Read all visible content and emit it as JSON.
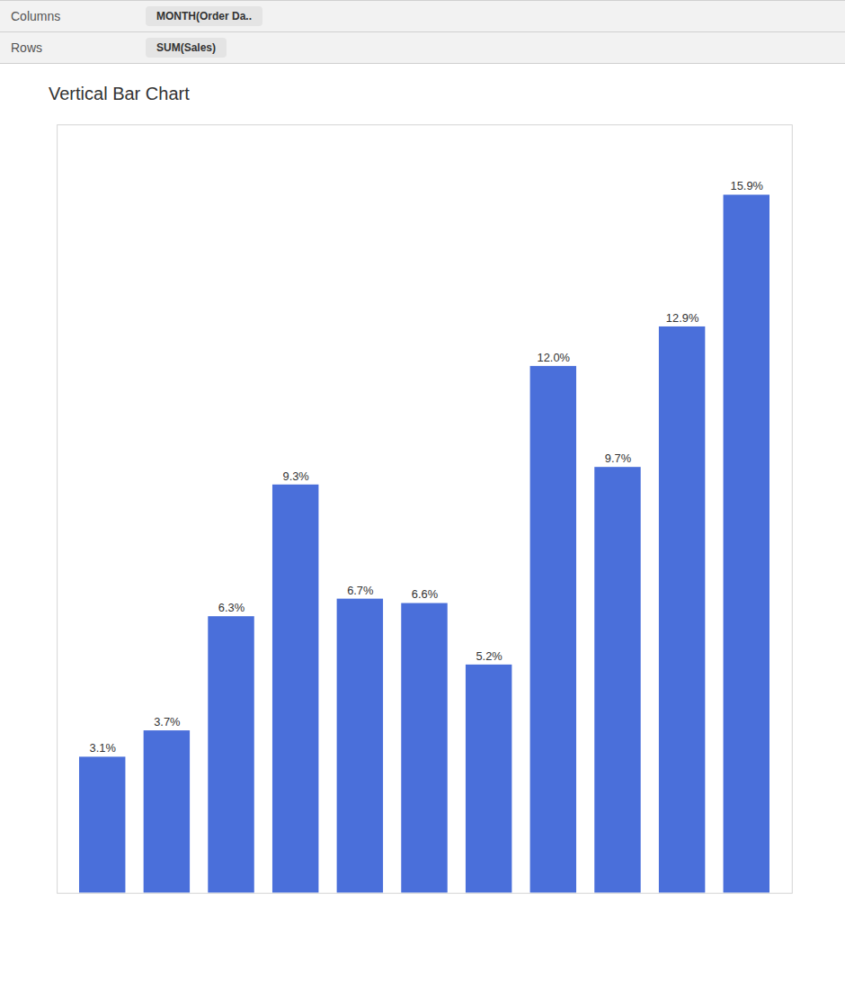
{
  "chart_data": {
    "type": "bar",
    "title": "Vertical Bar Chart",
    "annotations": [
      "Columns",
      "MONTH(Order Da..",
      "Rows",
      "SUM(Sales)"
    ],
    "categories": [
      null,
      null,
      null,
      null,
      null,
      null,
      null,
      null,
      null,
      null,
      null
    ],
    "values": [
      3.1,
      3.7,
      6.3,
      9.3,
      6.7,
      6.6,
      5.2,
      12.0,
      9.7,
      12.9,
      15.9
    ],
    "value_labels": [
      "3.1%",
      "3.7%",
      "6.3%",
      "9.3%",
      "6.7%",
      "6.6%",
      "5.2%",
      "12.0%",
      "9.7%",
      "12.9%",
      "15.9%"
    ],
    "data_labels": true,
    "color": "#4a6fda",
    "ylim": [
      0,
      17.5
    ],
    "yticks": [],
    "grid": false,
    "tick_labels": false
  }
}
